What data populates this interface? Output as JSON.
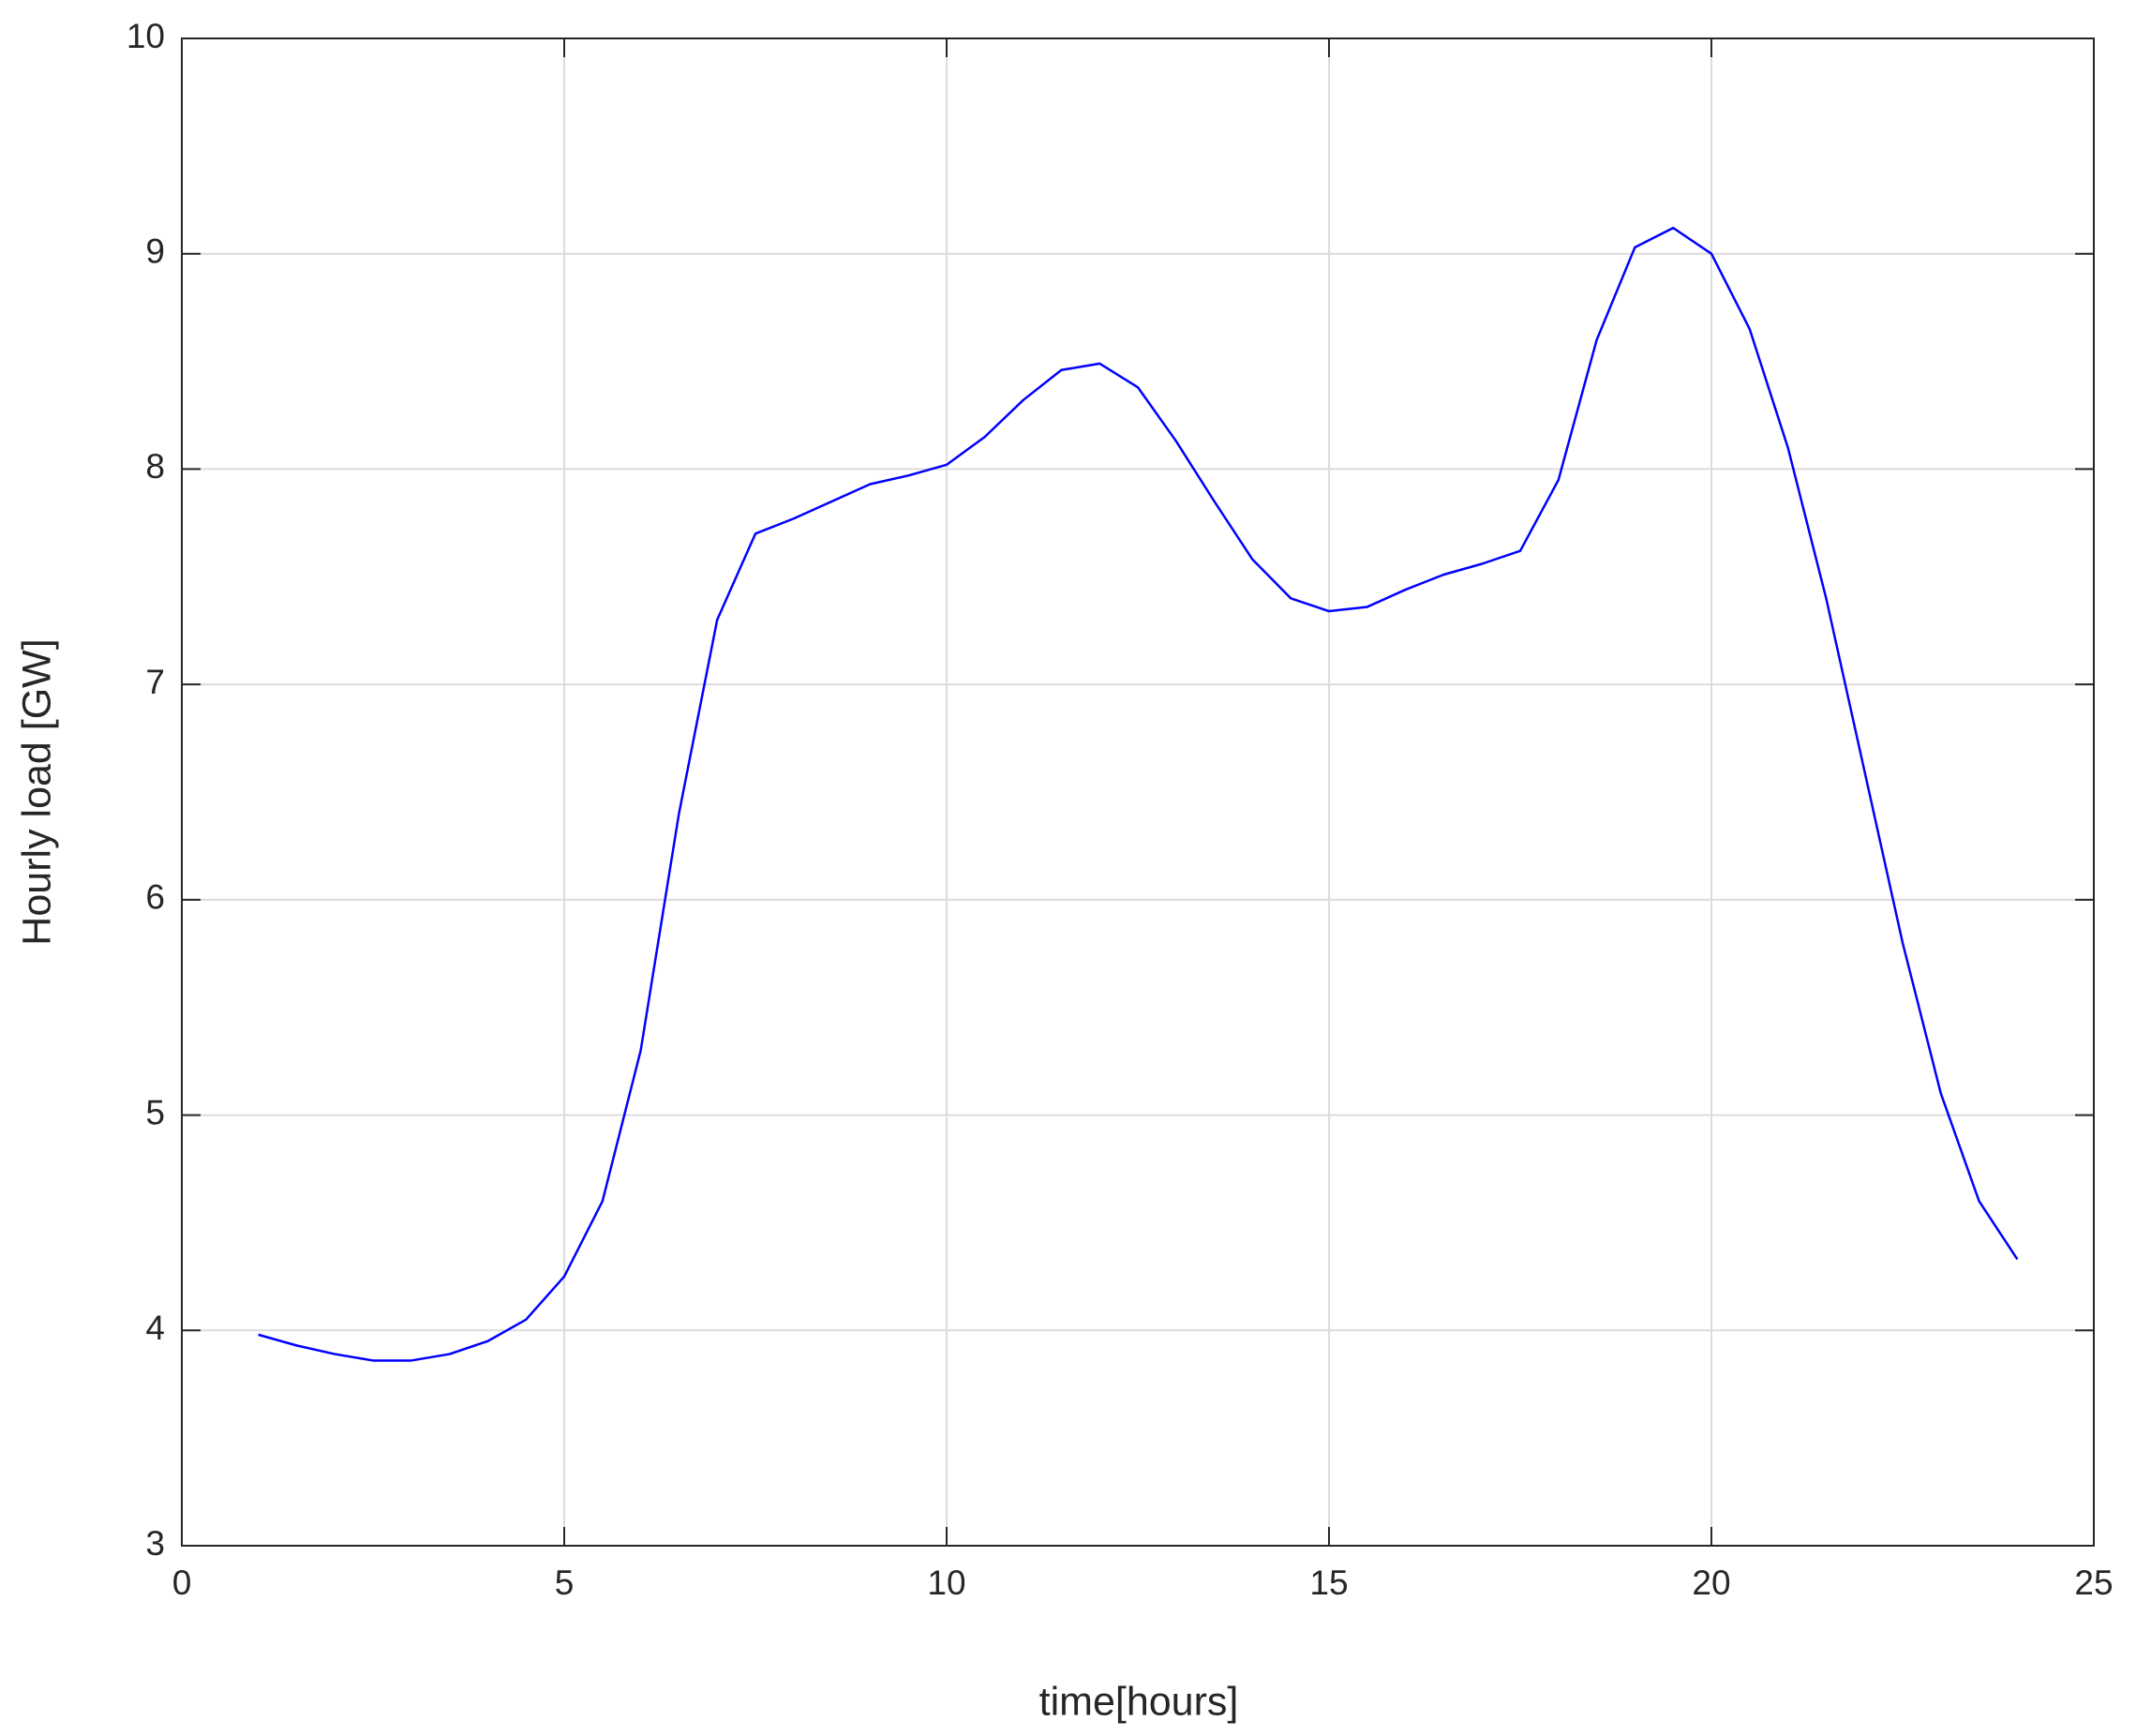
{
  "chart_data": {
    "type": "line",
    "x_label": "time[hours]",
    "y_label": "Hourly load [GW]",
    "x": [
      1,
      1.5,
      2,
      2.5,
      3,
      3.5,
      4,
      4.5,
      5,
      5.5,
      6,
      6.5,
      7,
      7.5,
      8,
      8.5,
      9,
      9.5,
      10,
      10.5,
      11,
      11.5,
      12,
      12.5,
      13,
      13.5,
      14,
      14.5,
      15,
      15.5,
      16,
      16.5,
      17,
      17.5,
      18,
      18.5,
      19,
      19.5,
      20,
      20.5,
      21,
      21.5,
      22,
      22.5,
      23,
      23.5,
      24
    ],
    "series": [
      {
        "color": "#0000ff",
        "values": [
          3.98,
          3.93,
          3.89,
          3.86,
          3.86,
          3.89,
          3.95,
          4.05,
          4.25,
          4.6,
          5.3,
          6.4,
          7.3,
          7.7,
          7.77,
          7.85,
          7.93,
          7.97,
          8.02,
          8.15,
          8.32,
          8.46,
          8.49,
          8.38,
          8.13,
          7.85,
          7.58,
          7.4,
          7.34,
          7.36,
          7.44,
          7.51,
          7.56,
          7.62,
          7.95,
          8.6,
          9.03,
          9.12,
          9.0,
          8.65,
          8.1,
          7.4,
          6.6,
          5.8,
          5.1,
          4.6,
          4.33
        ]
      }
    ],
    "xlim": [
      0,
      25
    ],
    "xticks": [
      0,
      5,
      10,
      15,
      20,
      25
    ],
    "ylim": [
      3,
      10
    ],
    "yticks": [
      3,
      4,
      5,
      6,
      7,
      8,
      9,
      10
    ],
    "grid": true
  }
}
